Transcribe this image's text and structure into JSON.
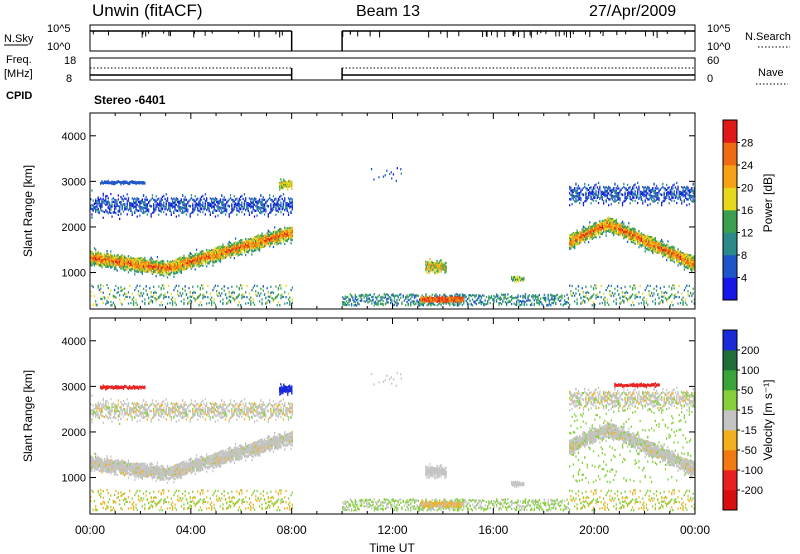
{
  "header": {
    "radar": "Unwin (fitACF)",
    "beam": "Beam 13",
    "date": "27/Apr/2009"
  },
  "top_panels": {
    "nsky_label": "N.Sky",
    "nsky_ticks": [
      "10^5",
      "10^0"
    ],
    "nsearch_label": "N.Search",
    "nsearch_ticks": [
      "10^5",
      "10^0"
    ],
    "freq_label": "Freq.",
    "freq_unit": "[MHz]",
    "freq_ticks": [
      "18",
      "8"
    ],
    "nave_label": "Nave",
    "nave_ticks": [
      "60",
      "0"
    ],
    "cpid_label": "CPID",
    "cpid_value": "Stereo -6401"
  },
  "chart_data": [
    {
      "type": "heatmap",
      "name": "power",
      "ylabel": "Slant Range [km]",
      "ylim": [
        200,
        4500
      ],
      "yticks": [
        1000,
        2000,
        3000,
        4000
      ],
      "xlim": [
        0,
        24
      ],
      "colorbar": {
        "label": "Power [dB]",
        "range": [
          0,
          32
        ],
        "ticks": [
          "4",
          "8",
          "12",
          "16",
          "20",
          "24",
          "28"
        ],
        "colors": [
          "#1515e8",
          "#1e55c8",
          "#2a8a8a",
          "#3aa050",
          "#e6d81a",
          "#f5a015",
          "#ef6a10",
          "#e11818"
        ]
      },
      "data_gaps": [
        [
          8.0,
          10.0
        ]
      ],
      "echo_regions": [
        {
          "t": [
            0.0,
            8.0
          ],
          "range_km": [
            900,
            1900
          ],
          "power": "strong"
        },
        {
          "t": [
            0.0,
            8.0
          ],
          "range_km": [
            1900,
            3200
          ],
          "power": "weak"
        },
        {
          "t": [
            13.2,
            14.2
          ],
          "range_km": [
            900,
            1450
          ],
          "power": "moderate"
        },
        {
          "t": [
            13.0,
            15.0
          ],
          "range_km": [
            300,
            600
          ],
          "power": "strong"
        },
        {
          "t": [
            19.0,
            24.0
          ],
          "range_km": [
            900,
            2600
          ],
          "power": "strong"
        },
        {
          "t": [
            19.0,
            24.0
          ],
          "range_km": [
            2600,
            3200
          ],
          "power": "weak"
        }
      ]
    },
    {
      "type": "heatmap",
      "name": "velocity",
      "ylabel": "Slant Range [km]",
      "ylim": [
        200,
        4500
      ],
      "yticks": [
        1000,
        2000,
        3000,
        4000
      ],
      "xlim": [
        0,
        24
      ],
      "xticks": [
        "00:00",
        "04:00",
        "08:00",
        "12:00",
        "16:00",
        "20:00",
        "00:00"
      ],
      "xlabel": "Time UT",
      "colorbar": {
        "label": "Velocity [m s⁻¹]",
        "ticks": [
          "200",
          "100",
          "50",
          "15",
          "-15",
          "-50",
          "-100",
          "-200"
        ],
        "colors": [
          "#1a2ad8",
          "#1e6e3a",
          "#3aa43a",
          "#86d03c",
          "#c4c4c4",
          "#f2b01e",
          "#f07a10",
          "#e82020",
          "#d80e0e"
        ]
      },
      "data_gaps": [
        [
          8.0,
          10.0
        ]
      ],
      "echo_regions": [
        {
          "t": [
            0.0,
            8.0
          ],
          "range_km": [
            900,
            2400
          ],
          "velocity": "ground scatter (~0)"
        },
        {
          "t": [
            0.5,
            2.0
          ],
          "range_km": [
            2950,
            3100
          ],
          "velocity": "-200"
        },
        {
          "t": [
            7.5,
            8.0
          ],
          "range_km": [
            2800,
            3200
          ],
          "velocity": "200"
        },
        {
          "t": [
            13.2,
            14.2
          ],
          "range_km": [
            900,
            1450
          ],
          "velocity": "ground scatter (~0)"
        },
        {
          "t": [
            19.0,
            24.0
          ],
          "range_km": [
            900,
            2600
          ],
          "velocity": "ground scatter (~0)"
        },
        {
          "t": [
            20.8,
            22.5
          ],
          "range_km": [
            2900,
            3100
          ],
          "velocity": "-200"
        }
      ]
    }
  ]
}
